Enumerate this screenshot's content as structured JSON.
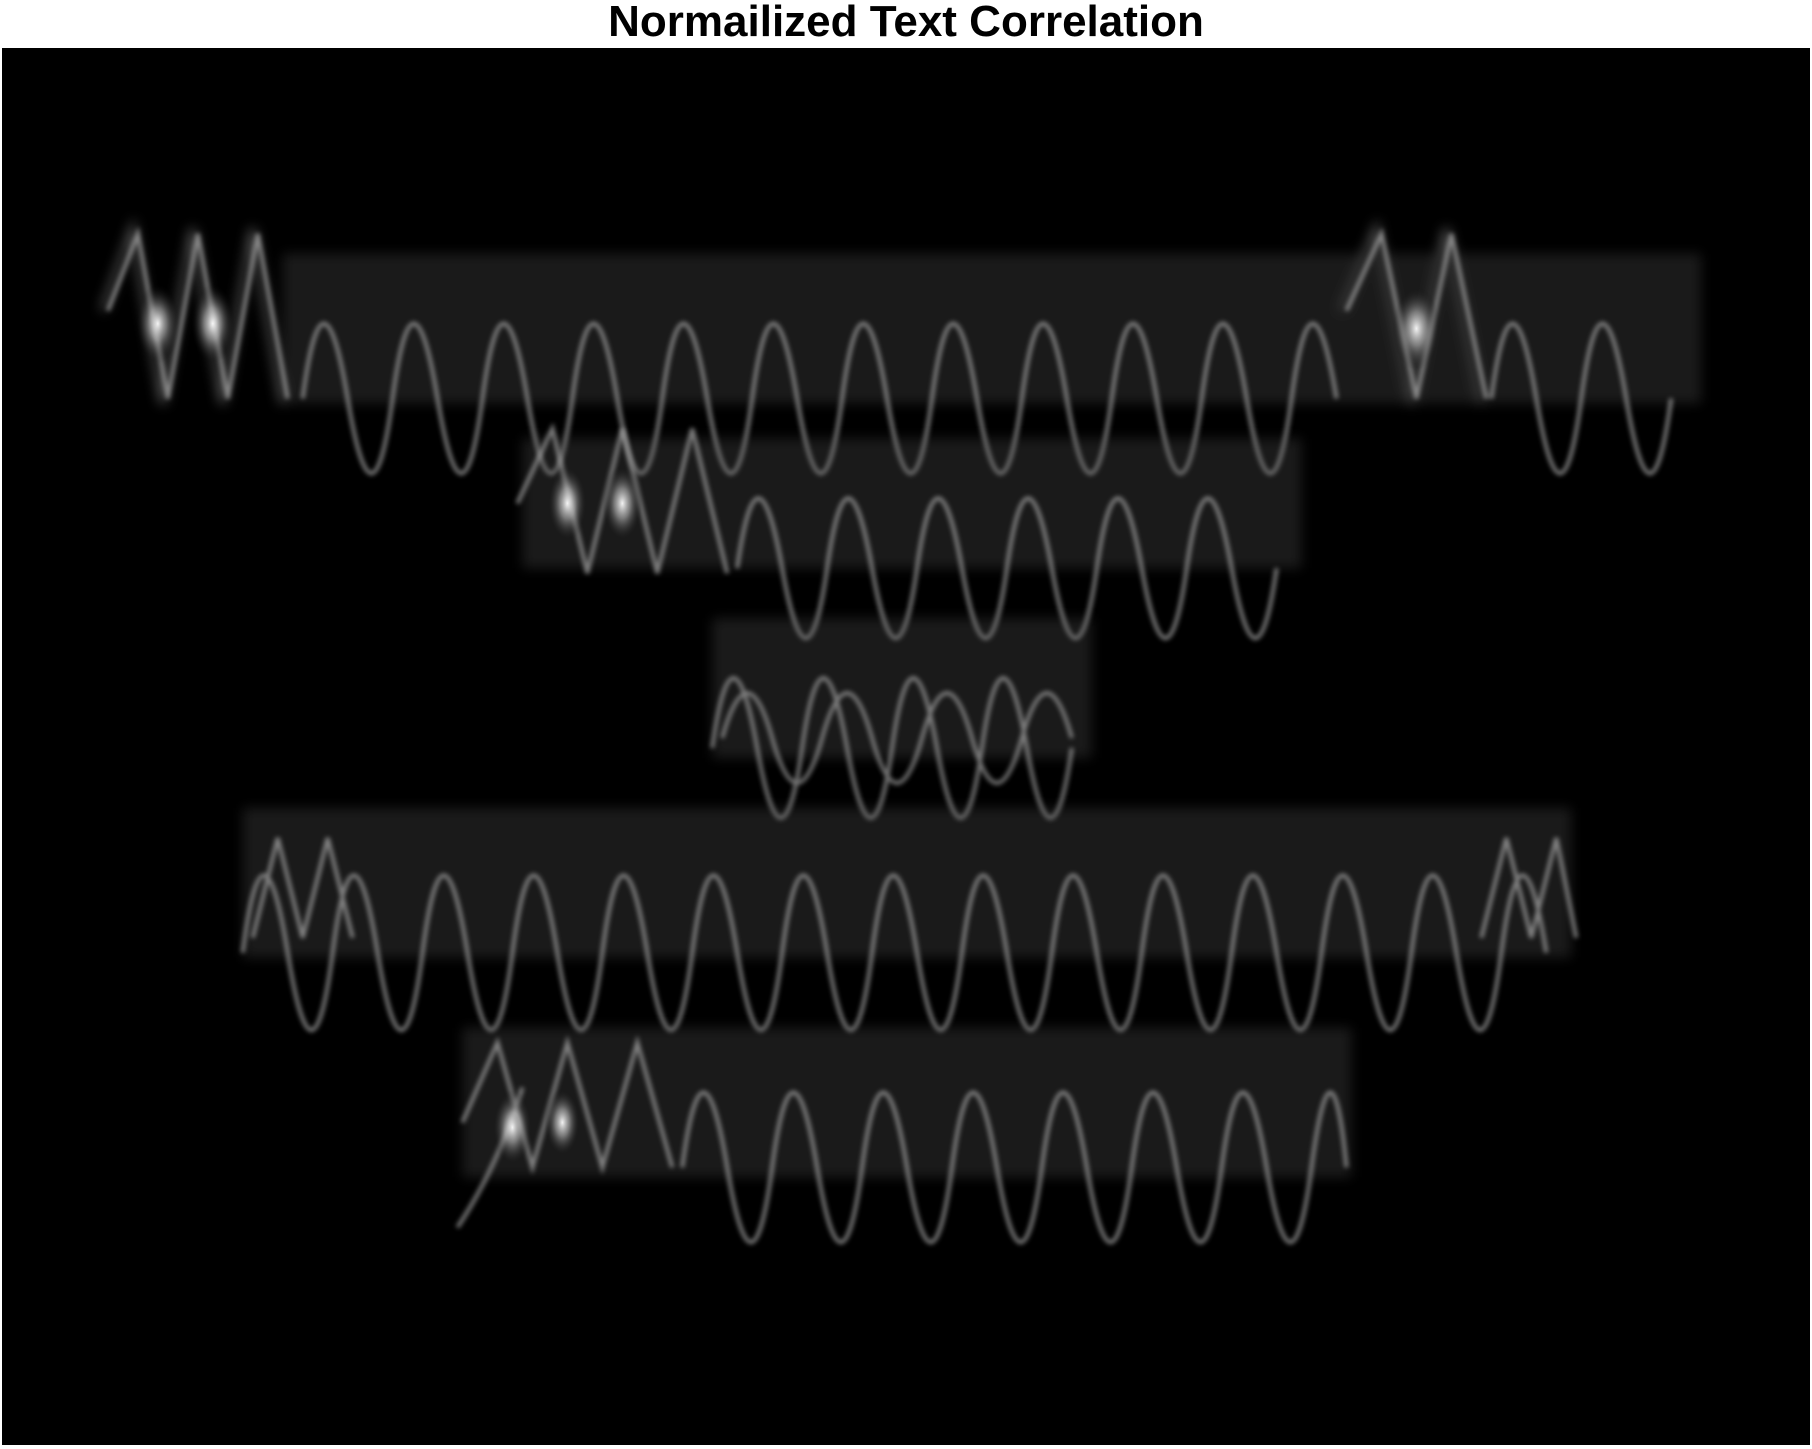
{
  "figure": {
    "title": "Normailized Text Correlation",
    "colormap": "grayscale",
    "background_color": "#000000",
    "title_color": "#000000",
    "line_count": 5
  }
}
